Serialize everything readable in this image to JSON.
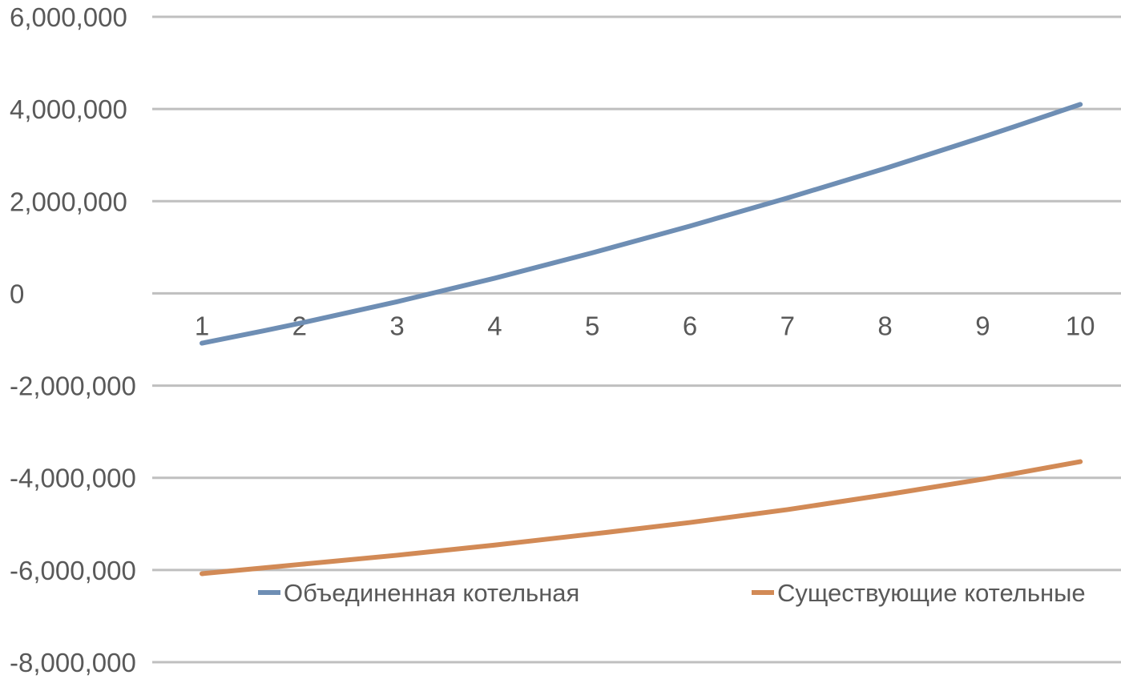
{
  "chart_data": {
    "type": "line",
    "title": "",
    "xlabel": "",
    "ylabel": "",
    "categories": [
      "1",
      "2",
      "3",
      "4",
      "5",
      "6",
      "7",
      "8",
      "9",
      "10"
    ],
    "x": [
      1,
      2,
      3,
      4,
      5,
      6,
      7,
      8,
      9,
      10
    ],
    "ylim": [
      -8000000,
      6000000
    ],
    "yticks": [
      6000000,
      4000000,
      2000000,
      0,
      -2000000,
      -4000000,
      -6000000,
      -8000000
    ],
    "ytick_labels": [
      "6,000,000",
      "4,000,000",
      "2,000,000",
      "0",
      "-2,000,000",
      "-4,000,000",
      "-6,000,000",
      "-8,000,000"
    ],
    "grid": true,
    "legend_position": "bottom",
    "series": [
      {
        "name": "Объединенная котельная",
        "color": "#6E8EB4",
        "values": [
          -1080000,
          -650000,
          -180000,
          330000,
          880000,
          1460000,
          2070000,
          2710000,
          3390000,
          4100000
        ]
      },
      {
        "name": "Существующие котельные",
        "color": "#D28A56",
        "values": [
          -6080000,
          -5880000,
          -5680000,
          -5460000,
          -5220000,
          -4970000,
          -4690000,
          -4370000,
          -4030000,
          -3650000
        ]
      }
    ]
  }
}
